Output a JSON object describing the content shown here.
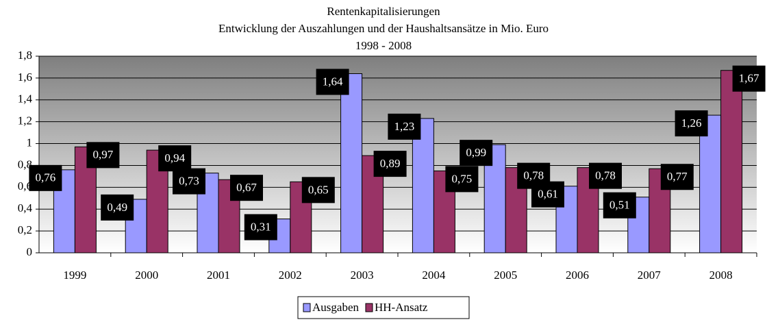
{
  "chart_data": {
    "type": "bar",
    "title": "Rentenkapitalisierungen",
    "subtitle": "Entwicklung der Auszahlungen und der Haushaltsansätze in Mio. Euro",
    "period": "1998 - 2008",
    "categories": [
      "1999",
      "2000",
      "2001",
      "2002",
      "2003",
      "2004",
      "2005",
      "2006",
      "2007",
      "2008"
    ],
    "series": [
      {
        "name": "Ausgaben",
        "color": "#9999ff",
        "values": [
          0.76,
          0.49,
          0.73,
          0.31,
          1.64,
          1.23,
          0.99,
          0.61,
          0.51,
          1.26
        ],
        "value_labels": [
          "0,76",
          "0,49",
          "0,73",
          "0,31",
          "1,64",
          "1,23",
          "0,99",
          "0,61",
          "0,51",
          "1,26"
        ]
      },
      {
        "name": "HH-Ansatz",
        "color": "#993366",
        "values": [
          0.97,
          0.94,
          0.67,
          0.65,
          0.89,
          0.75,
          0.78,
          0.78,
          0.77,
          1.67
        ],
        "value_labels": [
          "0,97",
          "0,94",
          "0,67",
          "0,65",
          "0,89",
          "0,75",
          "0,78",
          "0,78",
          "0,77",
          "1,67"
        ]
      }
    ],
    "ylim": [
      0,
      1.8
    ],
    "yticks": [
      0,
      {
        "value": 0.2,
        "label": "0,2"
      },
      {
        "value": 0.4,
        "label": "0,4"
      },
      {
        "value": 0.6,
        "label": "0,6"
      },
      {
        "value": 0.8,
        "label": "0,8"
      },
      1,
      {
        "value": 1.2,
        "label": "1,2"
      },
      {
        "value": 1.4,
        "label": "1,4"
      },
      {
        "value": 1.6,
        "label": "1,6"
      },
      {
        "value": 1.8,
        "label": "1,8"
      }
    ],
    "grid": true,
    "legend": "bottom"
  }
}
